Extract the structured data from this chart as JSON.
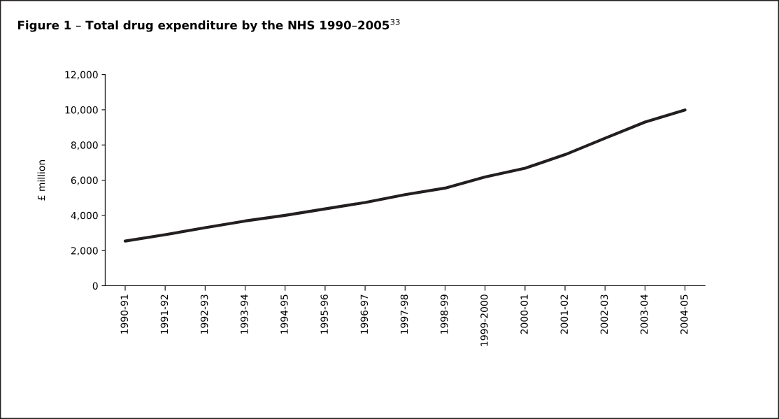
{
  "chart_data": {
    "type": "line",
    "title": "Figure 1 – Total drug expenditure by the NHS 1990–2005$^{33}$",
    "ylabel": "£ million",
    "categories": [
      "1990-91",
      "1991-92",
      "1992-93",
      "1993-94",
      "1994-95",
      "1995-96",
      "1996-97",
      "1997-98",
      "1998-99",
      "1999-2000",
      "2000-01",
      "2001-02",
      "2002-03",
      "2003-04",
      "2004-05"
    ],
    "series": [
      {
        "color": "#231f20",
        "values": [
          2540,
          2900,
          3300,
          3680,
          4000,
          4370,
          4730,
          5180,
          5550,
          6180,
          6680,
          7450,
          8380,
          9300,
          9990
        ]
      }
    ],
    "ylim": [
      0,
      12000
    ],
    "yticks": [
      {
        "value": 0,
        "label": "0"
      },
      {
        "value": 2000,
        "label": "2,000"
      },
      {
        "value": 4000,
        "label": "4,000"
      },
      {
        "value": 6000,
        "label": "6,000"
      },
      {
        "value": 8000,
        "label": "8,000"
      },
      {
        "value": 10000,
        "label": "10,000"
      },
      {
        "value": 12000,
        "label": "12,000"
      }
    ],
    "grid": false,
    "legend": false,
    "marker": "none",
    "line_style": "solid"
  }
}
